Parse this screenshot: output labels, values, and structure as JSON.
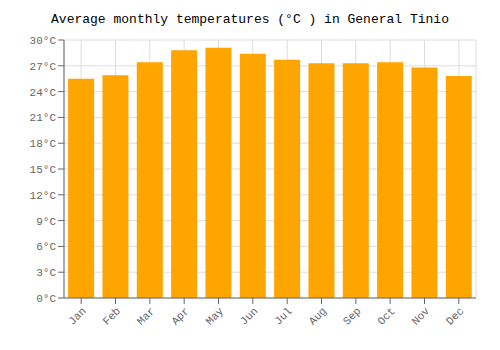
{
  "chart_data": {
    "type": "bar",
    "title": "Average monthly temperatures (°C ) in General Tinio",
    "categories": [
      "Jan",
      "Feb",
      "Mar",
      "Apr",
      "May",
      "Jun",
      "Jul",
      "Aug",
      "Sep",
      "Oct",
      "Nov",
      "Dec"
    ],
    "values": [
      25.5,
      25.9,
      27.4,
      28.8,
      29.1,
      28.4,
      27.7,
      27.3,
      27.3,
      27.4,
      26.8,
      25.8
    ],
    "color": "#FFA500",
    "ylim": [
      0,
      30
    ],
    "yticks": [
      {
        "value": 0,
        "label": "0°C"
      },
      {
        "value": 3,
        "label": "3°C"
      },
      {
        "value": 6,
        "label": "6°C"
      },
      {
        "value": 9,
        "label": "9°C"
      },
      {
        "value": 12,
        "label": "12°C"
      },
      {
        "value": 15,
        "label": "15°C"
      },
      {
        "value": 18,
        "label": "18°C"
      },
      {
        "value": 21,
        "label": "21°C"
      },
      {
        "value": 24,
        "label": "24°C"
      },
      {
        "value": 27,
        "label": "27°C"
      },
      {
        "value": 30,
        "label": "30°C"
      }
    ],
    "grid": true
  }
}
